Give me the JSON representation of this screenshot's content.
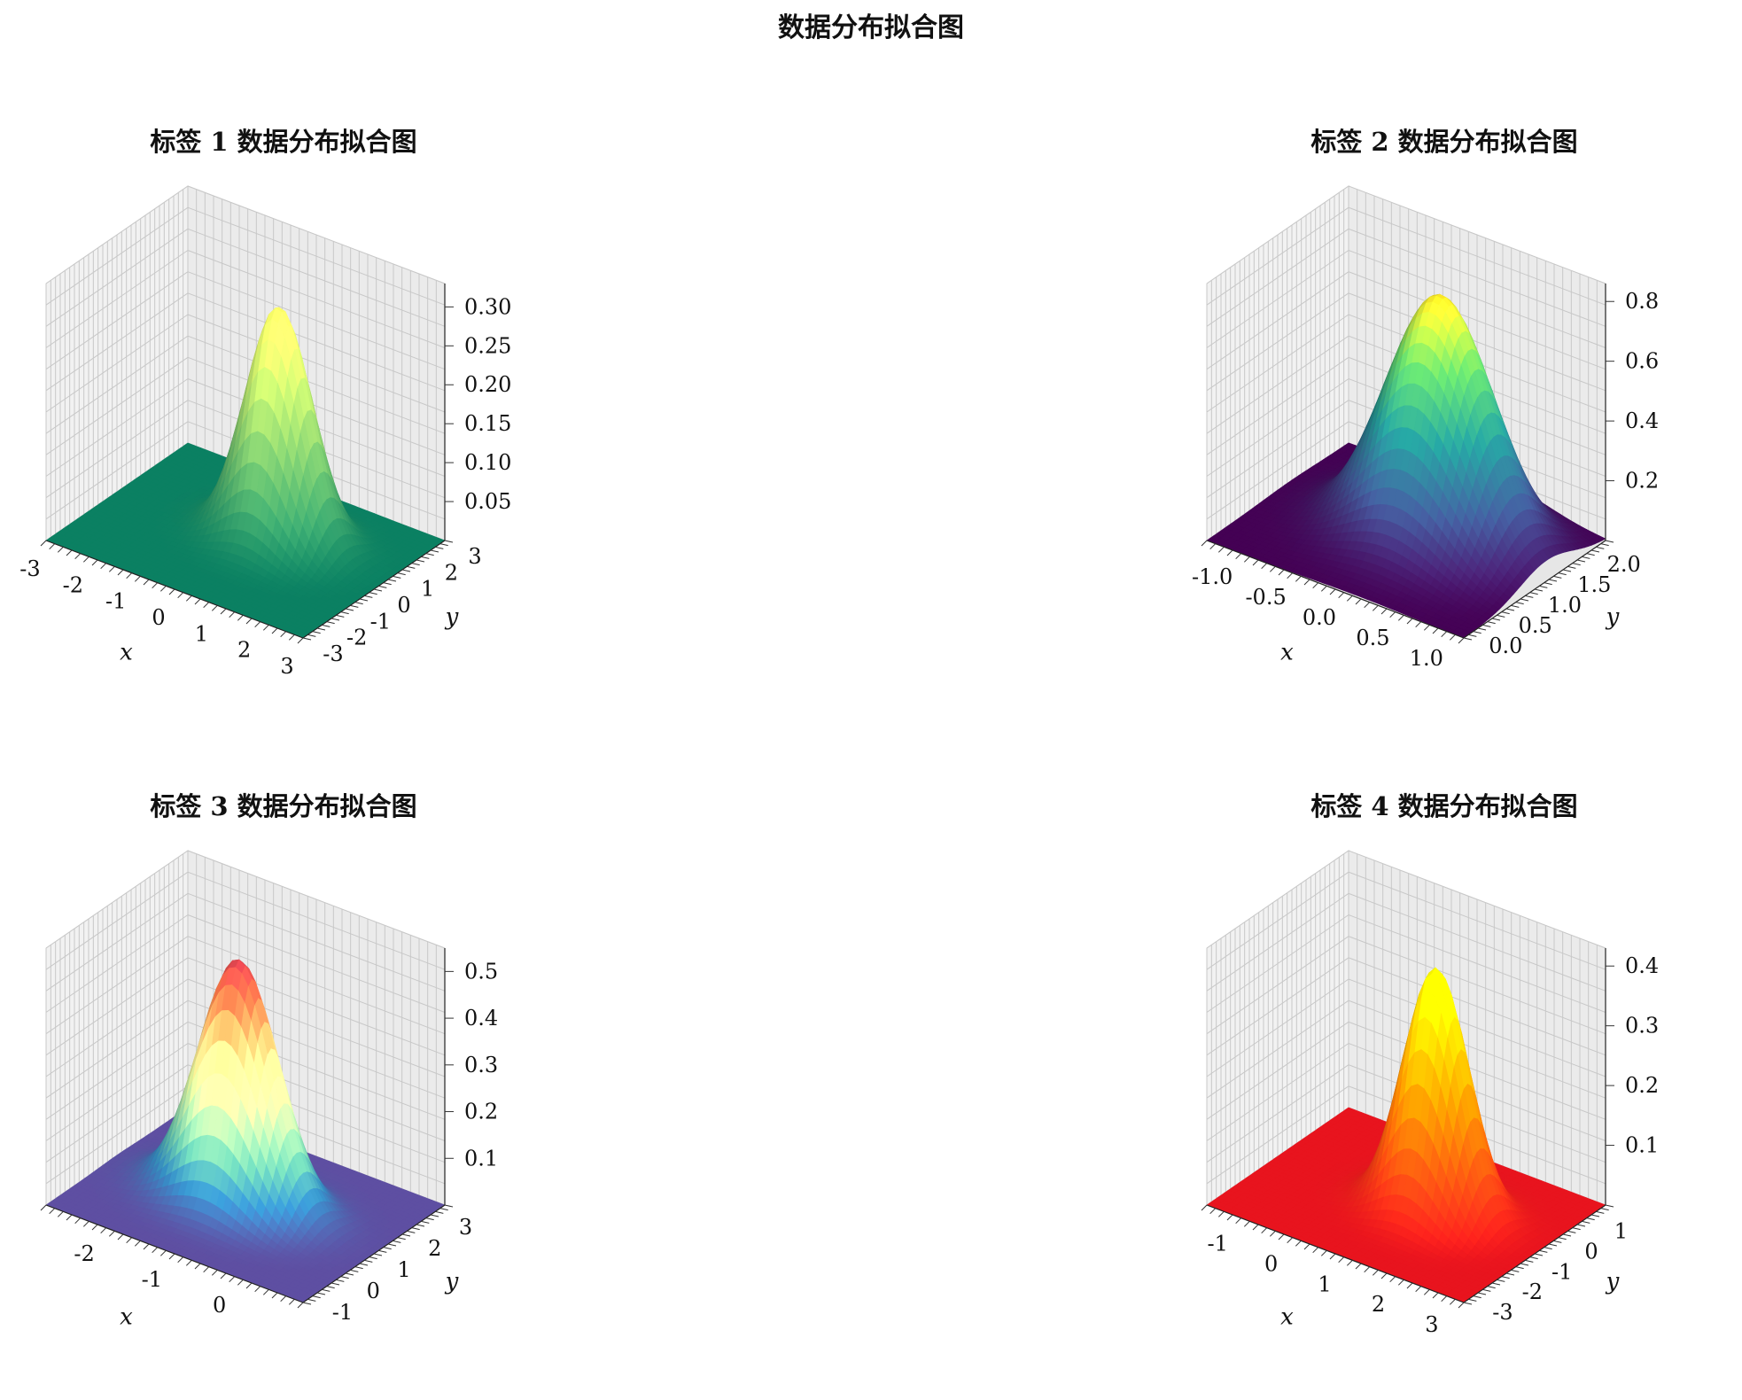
{
  "figure": {
    "title": "数据分布拟合图"
  },
  "chart_data": [
    {
      "type": "surface",
      "title": "标签 1 数据分布拟合图",
      "colormap": "summer",
      "colors": [
        "#0b8062",
        "#ffff66"
      ],
      "xlabel": "x",
      "ylabel": "y",
      "zlabel": "",
      "x_range": [
        -3,
        3
      ],
      "y_range": [
        -3,
        3
      ],
      "z_range": [
        0,
        0.33
      ],
      "x_ticks": [
        "-3",
        "-2",
        "-1",
        "0",
        "1",
        "2",
        "3"
      ],
      "y_ticks": [
        "-3",
        "-2",
        "-1",
        "0",
        "1",
        "2",
        "3"
      ],
      "z_ticks": [
        "0.05",
        "0.10",
        "0.15",
        "0.20",
        "0.25",
        "0.30"
      ],
      "peak_location": [
        0.5,
        0.5
      ],
      "peak_value": 0.3,
      "sigma": 0.7,
      "grid": true
    },
    {
      "type": "surface",
      "title": "标签 2 数据分布拟合图",
      "colormap": "viridis",
      "colors": [
        "#440154",
        "#3b528b",
        "#21908d",
        "#5dc963",
        "#fde725"
      ],
      "xlabel": "x",
      "ylabel": "y",
      "zlabel": "",
      "x_range": [
        -1.2,
        1.2
      ],
      "y_range": [
        -0.2,
        2.2
      ],
      "z_range": [
        0,
        0.86
      ],
      "x_ticks": [
        "-1.0",
        "-0.5",
        "0.0",
        "0.5",
        "1.0"
      ],
      "y_ticks": [
        "0.0",
        "0.5",
        "1.0",
        "1.5",
        "2.0"
      ],
      "z_ticks": [
        "0.2",
        "0.4",
        "0.6",
        "0.8"
      ],
      "peak_location": [
        0.2,
        1.2
      ],
      "peak_value": 0.82,
      "sigma": 0.45,
      "grid": true
    },
    {
      "type": "surface",
      "title": "标签 3 数据分布拟合图",
      "colormap": "Spectral_r",
      "colors": [
        "#5e4fa2",
        "#3288bd",
        "#66c2a5",
        "#abdda4",
        "#e6f598",
        "#fee08b",
        "#fdae61",
        "#f46d43",
        "#d53e4f"
      ],
      "xlabel": "x",
      "ylabel": "y",
      "zlabel": "",
      "x_range": [
        -2.8,
        1.0
      ],
      "y_range": [
        -1.3,
        3.3
      ],
      "z_range": [
        0,
        0.55
      ],
      "x_ticks": [
        "-2",
        "-1",
        "0"
      ],
      "y_ticks": [
        "-1",
        "0",
        "1",
        "2",
        "3"
      ],
      "z_ticks": [
        "0.1",
        "0.2",
        "0.3",
        "0.4",
        "0.5"
      ],
      "peak_location": [
        -1.0,
        1.0
      ],
      "peak_value": 0.52,
      "sigma": 0.55,
      "grid": true
    },
    {
      "type": "surface",
      "title": "标签 4 数据分布拟合图",
      "colormap": "autumn",
      "colors": [
        "#e8141e",
        "#ff8c00",
        "#ffff00"
      ],
      "xlabel": "x",
      "ylabel": "y",
      "zlabel": "",
      "x_range": [
        -1.5,
        3.3
      ],
      "y_range": [
        -3.3,
        1.5
      ],
      "z_range": [
        0,
        0.43
      ],
      "x_ticks": [
        "-1",
        "0",
        "1",
        "2",
        "3"
      ],
      "y_ticks": [
        "-3",
        "-2",
        "-1",
        "0",
        "1"
      ],
      "z_ticks": [
        "0.1",
        "0.2",
        "0.3",
        "0.4"
      ],
      "peak_location": [
        1.4,
        -0.8
      ],
      "peak_value": 0.41,
      "sigma": 0.55,
      "grid": true
    }
  ]
}
